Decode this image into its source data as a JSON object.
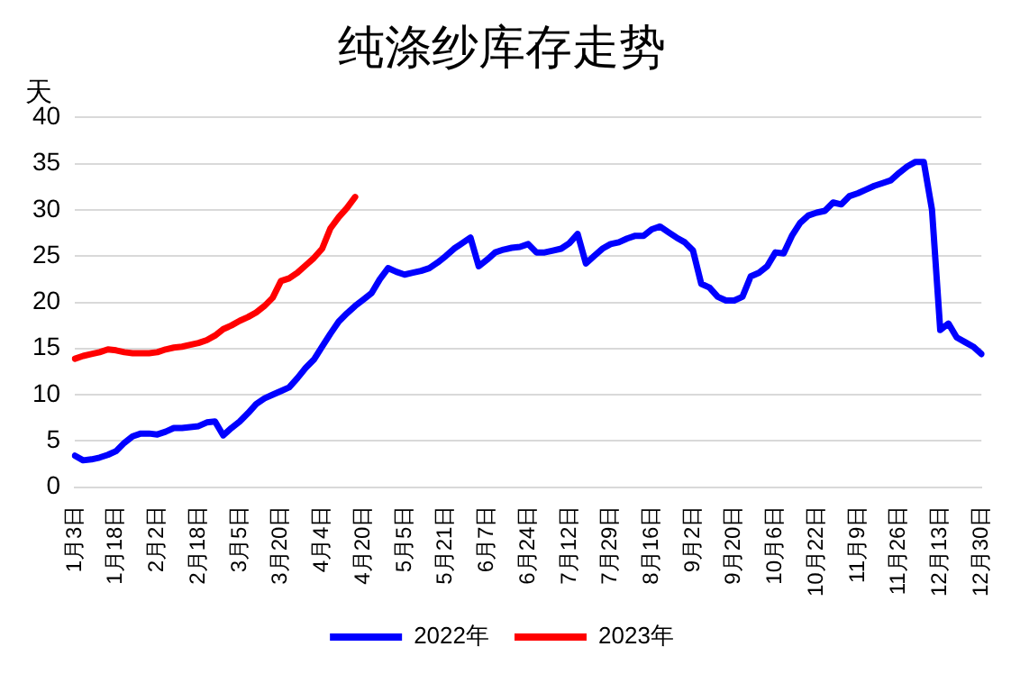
{
  "chart_data": {
    "type": "line",
    "title": "纯涤纱库存走势",
    "ylabel": "天",
    "categories": [
      "1月3日",
      null,
      null,
      null,
      null,
      "1月18日",
      null,
      null,
      null,
      null,
      "2月2日",
      null,
      null,
      null,
      null,
      "2月18日",
      null,
      null,
      null,
      null,
      "3月5日",
      null,
      null,
      null,
      null,
      "3月20日",
      null,
      null,
      null,
      null,
      "4月4日",
      null,
      null,
      null,
      null,
      "4月20日",
      null,
      null,
      null,
      null,
      "5月5日",
      null,
      null,
      null,
      null,
      "5月21日",
      null,
      null,
      null,
      null,
      "6月7日",
      null,
      null,
      null,
      null,
      "6月24日",
      null,
      null,
      null,
      null,
      "7月12日",
      null,
      null,
      null,
      null,
      "7月29日",
      null,
      null,
      null,
      null,
      "8月16日",
      null,
      null,
      null,
      null,
      "9月2日",
      null,
      null,
      null,
      null,
      "9月20日",
      null,
      null,
      null,
      null,
      "10月6日",
      null,
      null,
      null,
      null,
      "10月22日",
      null,
      null,
      null,
      null,
      "11月9日",
      null,
      null,
      null,
      null,
      "11月26日",
      null,
      null,
      null,
      null,
      "12月13日",
      null,
      null,
      null,
      null,
      "12月30日"
    ],
    "series": [
      {
        "name": "2022年",
        "color": "#0000ff",
        "values": [
          3.4,
          2.9,
          3.0,
          3.2,
          3.5,
          3.9,
          4.8,
          5.5,
          5.8,
          5.8,
          5.7,
          6.0,
          6.4,
          6.4,
          6.5,
          6.6,
          7.0,
          7.1,
          5.6,
          6.4,
          7.1,
          8.0,
          9.0,
          9.6,
          10.0,
          10.4,
          10.8,
          11.8,
          12.9,
          13.8,
          15.2,
          16.6,
          17.9,
          18.8,
          19.6,
          20.3,
          21.0,
          22.5,
          23.7,
          23.3,
          23.0,
          23.2,
          23.4,
          23.7,
          24.3,
          25.0,
          25.8,
          26.4,
          27.0,
          23.9,
          24.6,
          25.4,
          25.7,
          25.9,
          26.0,
          26.3,
          25.4,
          25.4,
          25.6,
          25.8,
          26.4,
          27.4,
          24.2,
          25.0,
          25.8,
          26.3,
          26.5,
          26.9,
          27.2,
          27.2,
          27.9,
          28.2,
          27.6,
          27.0,
          26.5,
          25.6,
          22.0,
          21.6,
          20.6,
          20.2,
          20.2,
          20.6,
          22.8,
          23.2,
          23.9,
          25.4,
          25.3,
          27.2,
          28.6,
          29.4,
          29.7,
          29.9,
          30.8,
          30.6,
          31.5,
          31.8,
          32.2,
          32.6,
          32.9,
          33.2,
          34.0,
          34.7,
          35.2,
          35.2,
          30.0,
          17.0,
          17.7,
          16.2,
          15.7,
          15.2,
          14.4
        ]
      },
      {
        "name": "2023年",
        "color": "#ff0000",
        "values": [
          13.9,
          14.2,
          14.4,
          14.6,
          14.9,
          14.8,
          14.6,
          14.5,
          14.5,
          14.5,
          14.6,
          14.9,
          15.1,
          15.2,
          15.4,
          15.6,
          15.9,
          16.4,
          17.1,
          17.5,
          18.0,
          18.4,
          18.9,
          19.6,
          20.5,
          22.3,
          22.6,
          23.2,
          24.0,
          24.8,
          25.8,
          28.0,
          29.2,
          30.2,
          31.4,
          null,
          null,
          null,
          null,
          null,
          null,
          null,
          null,
          null,
          null,
          null,
          null,
          null,
          null,
          null,
          null,
          null,
          null,
          null,
          null,
          null,
          null,
          null,
          null,
          null,
          null,
          null,
          null,
          null,
          null,
          null,
          null,
          null,
          null,
          null,
          null,
          null,
          null,
          null,
          null,
          null,
          null,
          null,
          null,
          null,
          null,
          null,
          null,
          null,
          null,
          null,
          null,
          null,
          null,
          null,
          null,
          null,
          null,
          null,
          null,
          null,
          null,
          null,
          null,
          null,
          null,
          null,
          null,
          null,
          null,
          null,
          null,
          null,
          null,
          null,
          null
        ]
      }
    ],
    "ylim": [
      0,
      40
    ],
    "yticks": [
      0,
      5,
      10,
      15,
      20,
      25,
      30,
      35,
      40
    ],
    "grid": "y",
    "legend": "bottom",
    "marker": "none",
    "line_style": "solid"
  }
}
